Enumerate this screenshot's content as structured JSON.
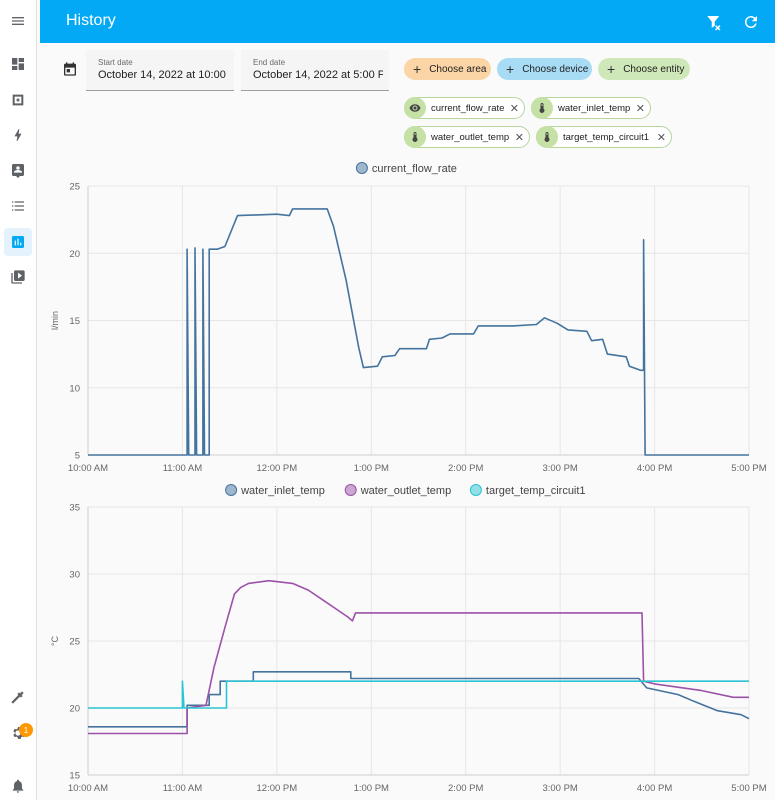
{
  "header": {
    "title": "History"
  },
  "date_range": {
    "start": {
      "label": "Start date",
      "value": "October 14, 2022 at 10:00"
    },
    "end": {
      "label": "End date",
      "value": "October 14, 2022 at 5:00 P"
    }
  },
  "target_chips": [
    {
      "label": "Choose area",
      "color": "#fbd5a6"
    },
    {
      "label": "Choose device",
      "color": "#a8dcf5"
    },
    {
      "label": "Choose entity",
      "color": "#cfe8b9"
    }
  ],
  "entities": [
    {
      "label": "current_flow_rate",
      "icon": "eye-icon"
    },
    {
      "label": "water_inlet_temp",
      "icon": "thermometer-icon"
    },
    {
      "label": "water_outlet_temp",
      "icon": "thermometer-icon"
    },
    {
      "label": "target_temp_circuit1",
      "icon": "thermometer-icon"
    }
  ],
  "sidebar": {
    "items": [
      "menu-icon",
      "dashboard-icon",
      "map-icon",
      "energy-icon",
      "logbook-icon",
      "list-icon",
      "history-icon",
      "media-icon"
    ],
    "bottom": [
      "developer-tools-icon",
      "settings-icon",
      "notifications-icon"
    ],
    "settings_badge": "1"
  },
  "chart_data": [
    {
      "type": "line",
      "legend": [
        "current_flow_rate"
      ],
      "ylabel": "l/min",
      "ylim": [
        5,
        25
      ],
      "yticks": [
        5,
        10,
        15,
        20,
        25
      ],
      "xticks": [
        "10:00 AM",
        "11:00 AM",
        "12:00 PM",
        "1:00 PM",
        "2:00 PM",
        "3:00 PM",
        "4:00 PM",
        "5:00 PM"
      ],
      "xlim": [
        "10:00",
        "17:00"
      ],
      "series": [
        {
          "name": "current_flow_rate",
          "color": "#44739e",
          "points": [
            [
              "10:00",
              5
            ],
            [
              "11:03",
              5
            ],
            [
              "11:03",
              20.3
            ],
            [
              "11:04",
              5
            ],
            [
              "11:08",
              5
            ],
            [
              "11:08",
              20.4
            ],
            [
              "11:09",
              5
            ],
            [
              "11:13",
              5
            ],
            [
              "11:13",
              20.3
            ],
            [
              "11:14",
              5
            ],
            [
              "11:17",
              5
            ],
            [
              "11:17",
              20.3
            ],
            [
              "11:22",
              20.3
            ],
            [
              "11:27",
              20.5
            ],
            [
              "11:35",
              22.8
            ],
            [
              "12:00",
              22.9
            ],
            [
              "12:08",
              22.8
            ],
            [
              "12:10",
              23.3
            ],
            [
              "12:32",
              23.3
            ],
            [
              "12:36",
              22.0
            ],
            [
              "12:44",
              18.0
            ],
            [
              "12:52",
              13.0
            ],
            [
              "12:55",
              11.5
            ],
            [
              "13:04",
              11.6
            ],
            [
              "13:07",
              12.3
            ],
            [
              "13:15",
              12.4
            ],
            [
              "13:18",
              12.9
            ],
            [
              "13:35",
              12.9
            ],
            [
              "13:37",
              13.6
            ],
            [
              "13:45",
              13.7
            ],
            [
              "13:50",
              14.0
            ],
            [
              "14:05",
              14.0
            ],
            [
              "14:08",
              14.6
            ],
            [
              "14:30",
              14.6
            ],
            [
              "14:45",
              14.7
            ],
            [
              "14:50",
              15.2
            ],
            [
              "14:58",
              14.8
            ],
            [
              "15:05",
              14.3
            ],
            [
              "15:17",
              14.2
            ],
            [
              "15:20",
              13.5
            ],
            [
              "15:27",
              13.6
            ],
            [
              "15:30",
              12.5
            ],
            [
              "15:42",
              12.3
            ],
            [
              "15:44",
              11.6
            ],
            [
              "15:51",
              11.3
            ],
            [
              "15:53",
              11.3
            ],
            [
              "15:53",
              21.0
            ],
            [
              "15:54",
              5
            ],
            [
              "17:00",
              5
            ]
          ]
        }
      ]
    },
    {
      "type": "line",
      "legend": [
        "water_inlet_temp",
        "water_outlet_temp",
        "target_temp_circuit1"
      ],
      "ylabel": "°C",
      "ylim": [
        15,
        35
      ],
      "yticks": [
        15,
        20,
        25,
        30,
        35
      ],
      "xticks": [
        "10:00 AM",
        "11:00 AM",
        "12:00 PM",
        "1:00 PM",
        "2:00 PM",
        "3:00 PM",
        "4:00 PM",
        "5:00 PM"
      ],
      "xlim": [
        "10:00",
        "17:00"
      ],
      "series": [
        {
          "name": "water_inlet_temp",
          "color": "#44739e",
          "points": [
            [
              "10:00",
              18.6
            ],
            [
              "11:03",
              18.6
            ],
            [
              "11:03",
              20.2
            ],
            [
              "11:17",
              20.2
            ],
            [
              "11:17",
              21.0
            ],
            [
              "11:24",
              21.0
            ],
            [
              "11:24",
              22.0
            ],
            [
              "11:45",
              22.0
            ],
            [
              "11:45",
              22.7
            ],
            [
              "12:47",
              22.7
            ],
            [
              "12:47",
              22.2
            ],
            [
              "15:50",
              22.2
            ],
            [
              "15:55",
              21.5
            ],
            [
              "16:15",
              21.0
            ],
            [
              "16:25",
              20.5
            ],
            [
              "16:40",
              19.8
            ],
            [
              "16:55",
              19.5
            ],
            [
              "17:00",
              19.2
            ]
          ]
        },
        {
          "name": "water_outlet_temp",
          "color": "#9c52a8",
          "points": [
            [
              "10:00",
              18.1
            ],
            [
              "11:03",
              18.1
            ],
            [
              "11:03",
              20.0
            ],
            [
              "11:15",
              20.2
            ],
            [
              "11:20",
              23.0
            ],
            [
              "11:27",
              26.0
            ],
            [
              "11:33",
              28.5
            ],
            [
              "11:37",
              29.0
            ],
            [
              "11:42",
              29.3
            ],
            [
              "11:55",
              29.5
            ],
            [
              "12:10",
              29.3
            ],
            [
              "12:20",
              28.8
            ],
            [
              "12:30",
              28.0
            ],
            [
              "12:40",
              27.2
            ],
            [
              "12:45",
              26.8
            ],
            [
              "12:48",
              26.5
            ],
            [
              "12:50",
              27.1
            ],
            [
              "15:52",
              27.1
            ],
            [
              "15:53",
              22.0
            ],
            [
              "16:00",
              21.8
            ],
            [
              "16:30",
              21.3
            ],
            [
              "16:50",
              20.8
            ],
            [
              "17:00",
              20.8
            ]
          ]
        },
        {
          "name": "target_temp_circuit1",
          "color": "#2bc4d2",
          "points": [
            [
              "10:00",
              20.0
            ],
            [
              "11:00",
              20.0
            ],
            [
              "11:00",
              22.0
            ],
            [
              "11:01",
              20.0
            ],
            [
              "11:28",
              20.0
            ],
            [
              "11:28",
              22.0
            ],
            [
              "17:00",
              22.0
            ]
          ]
        }
      ]
    }
  ]
}
